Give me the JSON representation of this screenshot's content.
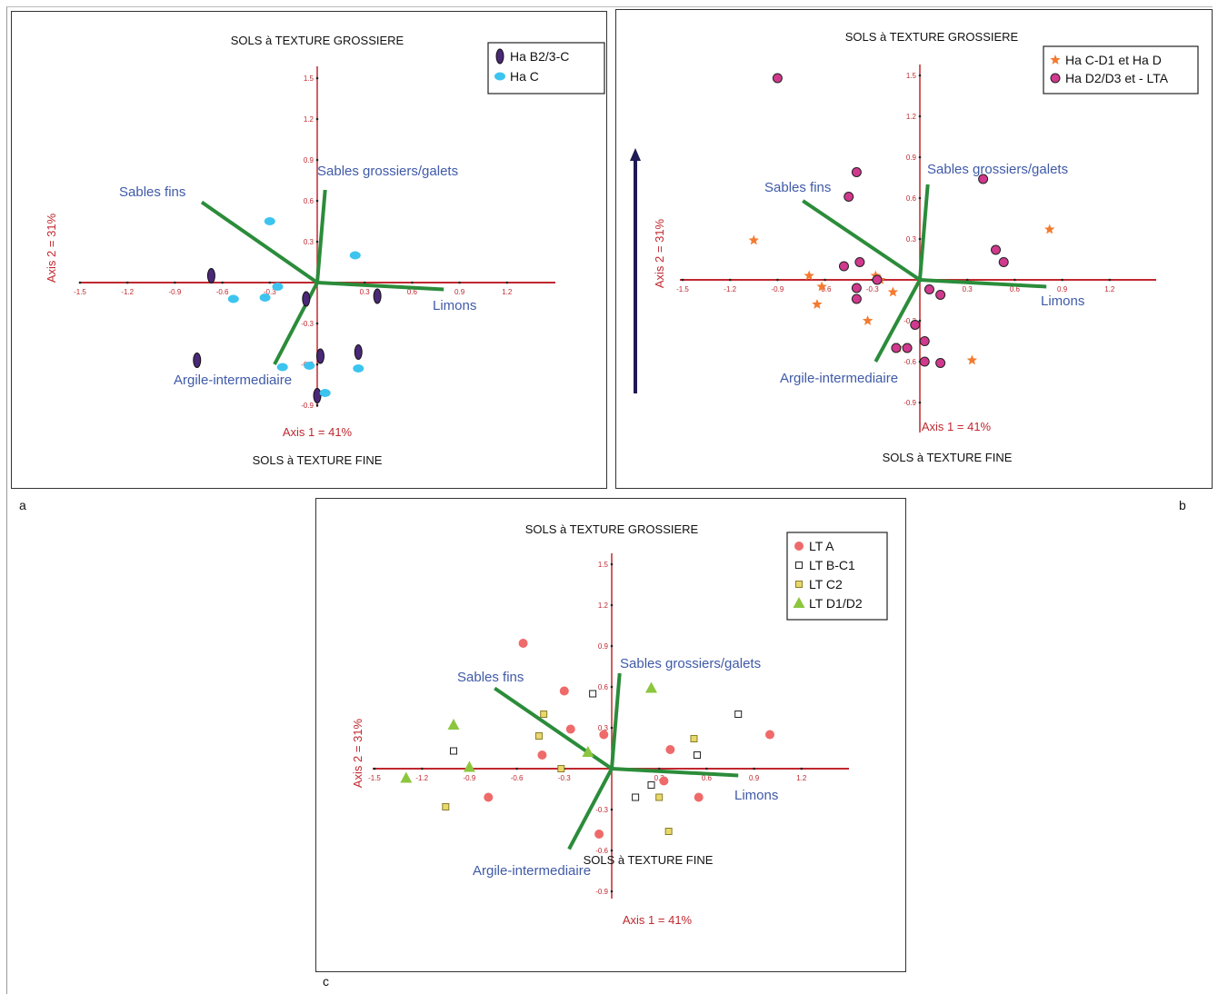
{
  "colors": {
    "axis": "#c0282f",
    "vector": "#2b8c3a",
    "vector_label": "#3f5aa8",
    "arrow": "#1d1a55"
  },
  "chart_data": [
    {
      "type": "scatter",
      "panel_label": "a",
      "top_label": "SOLS à TEXTURE GROSSIERE",
      "bottom_label": "SOLS à TEXTURE FINE",
      "xlabel": "Axis 1 = 41%",
      "ylabel": "Axis 2 = 31%",
      "xticks": [
        "-1.5",
        "-1.2",
        "-0.9",
        "-0.6",
        "-0.3",
        "0.3",
        "0.6",
        "0.9",
        "1.2"
      ],
      "yticks": [
        "1.5",
        "1.2",
        "0.9",
        "0.6",
        "0.3",
        "-0.3",
        "-0.6",
        "-0.9"
      ],
      "xlim": [
        -1.5,
        1.5
      ],
      "ylim": [
        -0.9,
        1.5
      ],
      "grid": false,
      "legend_position": "top-right",
      "vectors": [
        {
          "name": "Sables grossiers/galets",
          "x": 0.05,
          "y": 0.68
        },
        {
          "name": "Sables fins",
          "x": -0.73,
          "y": 0.59
        },
        {
          "name": "Limons",
          "x": 0.8,
          "y": -0.05
        },
        {
          "name": "Argile-intermediaire",
          "x": -0.27,
          "y": -0.6
        }
      ],
      "series": [
        {
          "name": "Ha B2/3-C",
          "marker": "ellipse",
          "color": "#4a2877",
          "points": [
            [
              -0.67,
              0.05
            ],
            [
              -0.07,
              -0.12
            ],
            [
              0.38,
              -0.1
            ],
            [
              -0.76,
              -0.57
            ],
            [
              0.02,
              -0.54
            ],
            [
              0.26,
              -0.51
            ],
            [
              0.0,
              -0.83
            ]
          ]
        },
        {
          "name": "Ha C",
          "marker": "ellipse",
          "color": "#3cc4ef",
          "points": [
            [
              -0.3,
              0.45
            ],
            [
              0.24,
              0.2
            ],
            [
              -0.25,
              -0.03
            ],
            [
              -0.53,
              -0.12
            ],
            [
              -0.33,
              -0.11
            ],
            [
              -0.22,
              -0.62
            ],
            [
              -0.05,
              -0.61
            ],
            [
              0.26,
              -0.63
            ],
            [
              0.05,
              -0.81
            ]
          ]
        }
      ]
    },
    {
      "type": "scatter",
      "panel_label": "b",
      "top_label": "SOLS à TEXTURE GROSSIERE",
      "bottom_label": "SOLS à TEXTURE FINE",
      "xlabel": "Axis 1 = 41%",
      "ylabel": "Axis 2 = 31%",
      "xticks": [
        "-1.5",
        "-1.2",
        "-0.9",
        "-0.6",
        "-0.3",
        "0.3",
        "0.6",
        "0.9",
        "1.2"
      ],
      "yticks": [
        "1.5",
        "1.2",
        "0.9",
        "0.6",
        "0.3",
        "-0.3",
        "-0.6",
        "-0.9"
      ],
      "xlim": [
        -1.5,
        1.5
      ],
      "ylim": [
        -0.9,
        1.5
      ],
      "grid": false,
      "legend_position": "top-right",
      "vectors": [
        {
          "name": "Sables grossiers/galets",
          "x": 0.05,
          "y": 0.7
        },
        {
          "name": "Sables fins",
          "x": -0.74,
          "y": 0.58
        },
        {
          "name": "Limons",
          "x": 0.8,
          "y": -0.05
        },
        {
          "name": "Argile-intermediaire",
          "x": -0.28,
          "y": -0.6
        }
      ],
      "series": [
        {
          "name": "Ha C-D1 et Ha D",
          "marker": "star",
          "color": "#f47a2f",
          "points": [
            [
              -1.05,
              0.29
            ],
            [
              -0.7,
              0.03
            ],
            [
              -0.62,
              -0.05
            ],
            [
              -0.65,
              -0.18
            ],
            [
              -0.28,
              0.03
            ],
            [
              -0.25,
              0.0
            ],
            [
              -0.17,
              -0.09
            ],
            [
              -0.33,
              -0.3
            ],
            [
              -0.14,
              -0.5
            ],
            [
              0.33,
              -0.59
            ],
            [
              0.82,
              0.37
            ]
          ]
        },
        {
          "name": "Ha D2/D3 et - LTA",
          "marker": "circle",
          "color": "#d0398d",
          "points": [
            [
              -0.9,
              1.48
            ],
            [
              -0.4,
              0.79
            ],
            [
              -0.45,
              0.61
            ],
            [
              0.4,
              0.74
            ],
            [
              -0.38,
              0.13
            ],
            [
              -0.48,
              0.1
            ],
            [
              -0.4,
              -0.06
            ],
            [
              -0.4,
              -0.14
            ],
            [
              -0.27,
              0.0
            ],
            [
              0.48,
              0.22
            ],
            [
              0.53,
              0.13
            ],
            [
              0.06,
              -0.07
            ],
            [
              0.13,
              -0.11
            ],
            [
              -0.03,
              -0.33
            ],
            [
              0.03,
              -0.45
            ],
            [
              -0.15,
              -0.5
            ],
            [
              -0.08,
              -0.5
            ],
            [
              0.03,
              -0.6
            ],
            [
              0.13,
              -0.61
            ]
          ]
        }
      ]
    },
    {
      "type": "scatter",
      "panel_label": "c",
      "top_label": "SOLS à TEXTURE GROSSIERE",
      "bottom_label": "SOLS à TEXTURE FINE",
      "xlabel": "Axis 1 = 41%",
      "ylabel": "Axis 2 = 31%",
      "xticks": [
        "-1.5",
        "-1.2",
        "-0.9",
        "-0.6",
        "-0.3",
        "0.3",
        "0.6",
        "0.9",
        "1.2"
      ],
      "yticks": [
        "1.5",
        "1.2",
        "0.9",
        "0.6",
        "0.3",
        "-0.3",
        "-0.6",
        "-0.9"
      ],
      "xlim": [
        -1.5,
        1.5
      ],
      "ylim": [
        -0.9,
        1.5
      ],
      "grid": false,
      "legend_position": "top-right",
      "vectors": [
        {
          "name": "Sables grossiers/galets",
          "x": 0.05,
          "y": 0.7
        },
        {
          "name": "Sables fins",
          "x": -0.74,
          "y": 0.59
        },
        {
          "name": "Limons",
          "x": 0.8,
          "y": -0.05
        },
        {
          "name": "Argile-intermediaire",
          "x": -0.27,
          "y": -0.59
        }
      ],
      "series": [
        {
          "name": "LT A",
          "marker": "circle",
          "color": "#ef6a6a",
          "points": [
            [
              -0.56,
              0.92
            ],
            [
              -0.3,
              0.57
            ],
            [
              -0.26,
              0.29
            ],
            [
              -0.44,
              0.1
            ],
            [
              -0.05,
              0.25
            ],
            [
              -0.78,
              -0.21
            ],
            [
              -0.08,
              -0.48
            ],
            [
              0.37,
              0.14
            ],
            [
              0.33,
              -0.09
            ],
            [
              0.55,
              -0.21
            ],
            [
              1.0,
              0.25
            ]
          ]
        },
        {
          "name": "LT B-C1",
          "marker": "square",
          "color": "#222222",
          "points": [
            [
              -1.0,
              0.13
            ],
            [
              -0.12,
              0.55
            ],
            [
              0.15,
              -0.21
            ],
            [
              0.25,
              -0.12
            ],
            [
              0.54,
              0.1
            ],
            [
              0.8,
              0.4
            ]
          ]
        },
        {
          "name": "LT C2",
          "marker": "square",
          "color": "#e8d86a",
          "points": [
            [
              -0.43,
              0.4
            ],
            [
              -0.46,
              0.24
            ],
            [
              -0.32,
              0.0
            ],
            [
              -1.05,
              -0.28
            ],
            [
              0.3,
              -0.21
            ],
            [
              0.52,
              0.22
            ],
            [
              0.36,
              -0.46
            ]
          ]
        },
        {
          "name": "LT D1/D2",
          "marker": "triangle",
          "color": "#8cc63e",
          "points": [
            [
              -1.0,
              0.32
            ],
            [
              -1.3,
              -0.07
            ],
            [
              -0.9,
              0.01
            ],
            [
              -0.15,
              0.12
            ],
            [
              0.25,
              0.59
            ]
          ]
        }
      ]
    }
  ]
}
